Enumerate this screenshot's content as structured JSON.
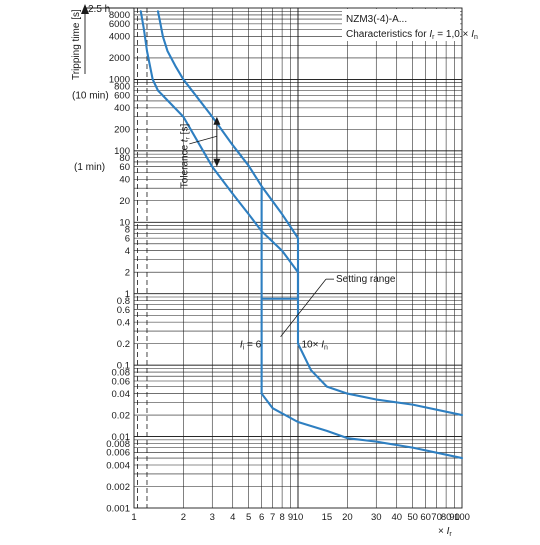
{
  "chart_data": {
    "type": "line",
    "x_scale": "log",
    "y_scale": "log",
    "xlim": [
      1,
      100
    ],
    "ylim": [
      0.001,
      10000
    ],
    "grid": true,
    "colors": {
      "curve": "#2e7fc1",
      "grid": "#1a1a1a",
      "frame": "#1a1a1a"
    },
    "header": {
      "title": "NZM3(-4)-A...",
      "subtitle_pre": "Characteristics for ",
      "subtitle_ir_var": "I",
      "subtitle_ir_sub": "r",
      "subtitle_mid": " = 1,0 × ",
      "subtitle_in_var": "I",
      "subtitle_in_sub": "n"
    },
    "y_axis": {
      "label": "Tripping time [s]",
      "top_marker": "2.5 h",
      "side_labels": [
        {
          "text": "(10 min)",
          "value": 600
        },
        {
          "text": "(1 min)",
          "value": 60
        }
      ],
      "ticks": [
        {
          "value": 8000,
          "label": "8000"
        },
        {
          "value": 6000,
          "label": "6000"
        },
        {
          "value": 4000,
          "label": "4000"
        },
        {
          "value": 2000,
          "label": "2000"
        },
        {
          "value": 1000,
          "label": "1000"
        },
        {
          "value": 800,
          "label": "800"
        },
        {
          "value": 600,
          "label": "600"
        },
        {
          "value": 400,
          "label": "400"
        },
        {
          "value": 200,
          "label": "200"
        },
        {
          "value": 100,
          "label": "100"
        },
        {
          "value": 80,
          "label": "80"
        },
        {
          "value": 60,
          "label": "60"
        },
        {
          "value": 40,
          "label": "40"
        },
        {
          "value": 20,
          "label": "20"
        },
        {
          "value": 10,
          "label": "10"
        },
        {
          "value": 8,
          "label": "8"
        },
        {
          "value": 6,
          "label": "6"
        },
        {
          "value": 4,
          "label": "4"
        },
        {
          "value": 2,
          "label": "2"
        },
        {
          "value": 1,
          "label": "1"
        },
        {
          "value": 0.8,
          "label": "0.8"
        },
        {
          "value": 0.6,
          "label": "0.6"
        },
        {
          "value": 0.4,
          "label": "0.4"
        },
        {
          "value": 0.2,
          "label": "0.2"
        },
        {
          "value": 0.1,
          "label": "0.1"
        },
        {
          "value": 0.08,
          "label": "0.08"
        },
        {
          "value": 0.06,
          "label": "0.06"
        },
        {
          "value": 0.04,
          "label": "0.04"
        },
        {
          "value": 0.02,
          "label": "0.02"
        },
        {
          "value": 0.01,
          "label": "0.01"
        },
        {
          "value": 0.008,
          "label": "0.008"
        },
        {
          "value": 0.006,
          "label": "0.006"
        },
        {
          "value": 0.004,
          "label": "0.004"
        },
        {
          "value": 0.002,
          "label": "0.002"
        },
        {
          "value": 0.001,
          "label": "0.001"
        }
      ]
    },
    "x_axis": {
      "unit_prefix": "× ",
      "unit_var": "I",
      "unit_sub": "r",
      "ticks": [
        {
          "value": 1,
          "label": "1"
        },
        {
          "value": 2,
          "label": "2"
        },
        {
          "value": 3,
          "label": "3"
        },
        {
          "value": 4,
          "label": "4"
        },
        {
          "value": 5,
          "label": "5"
        },
        {
          "value": 6,
          "label": "6"
        },
        {
          "value": 7,
          "label": "7"
        },
        {
          "value": 8,
          "label": "8"
        },
        {
          "value": 9,
          "label": "9"
        },
        {
          "value": 10,
          "label": "10"
        },
        {
          "value": 15,
          "label": "15"
        },
        {
          "value": 20,
          "label": "20"
        },
        {
          "value": 30,
          "label": "30"
        },
        {
          "value": 40,
          "label": "40"
        },
        {
          "value": 50,
          "label": "50"
        },
        {
          "value": 60,
          "label": "60"
        },
        {
          "value": 70,
          "label": "70"
        },
        {
          "value": 80,
          "label": "80"
        },
        {
          "value": 90,
          "label": "90"
        },
        {
          "value": 100,
          "label": "100"
        }
      ]
    },
    "reference_lines": [
      {
        "x": 1.05,
        "y_from": 0.001,
        "y_to": 10000,
        "style": "dashed"
      },
      {
        "x": 1.2,
        "y_from": 0.001,
        "y_to": 10000,
        "style": "dashed"
      }
    ],
    "series": [
      {
        "band": "upper",
        "points": [
          [
            1.4,
            9000
          ],
          [
            1.45,
            6000
          ],
          [
            1.5,
            4000
          ],
          [
            1.6,
            2500
          ],
          [
            1.8,
            1500
          ],
          [
            2,
            1000
          ],
          [
            3,
            300
          ],
          [
            4,
            120
          ],
          [
            5,
            62
          ],
          [
            6,
            32
          ],
          [
            8,
            13
          ],
          [
            10,
            6
          ],
          [
            10,
            0.2
          ],
          [
            12,
            0.085
          ],
          [
            15,
            0.05
          ],
          [
            20,
            0.04
          ],
          [
            30,
            0.033
          ],
          [
            50,
            0.028
          ],
          [
            100,
            0.02
          ]
        ]
      },
      {
        "band": "lower",
        "points": [
          [
            1.1,
            9000
          ],
          [
            1.15,
            5000
          ],
          [
            1.2,
            2500
          ],
          [
            1.3,
            1000
          ],
          [
            1.4,
            700
          ],
          [
            2,
            300
          ],
          [
            3,
            60
          ],
          [
            4,
            25
          ],
          [
            5,
            13
          ],
          [
            6,
            7.5
          ],
          [
            8,
            4
          ],
          [
            10,
            2
          ],
          [
            10,
            0.85
          ],
          [
            6,
            0.85
          ],
          [
            6,
            0.04
          ],
          [
            7,
            0.025
          ],
          [
            10,
            0.016
          ],
          [
            15,
            0.012
          ],
          [
            20,
            0.0095
          ],
          [
            30,
            0.0085
          ],
          [
            50,
            0.007
          ],
          [
            100,
            0.005
          ]
        ]
      },
      {
        "band": "vertical",
        "points": [
          [
            6,
            30
          ],
          [
            6,
            0.85
          ]
        ]
      }
    ],
    "annotations": {
      "tolerance": {
        "label_pre": "Tolerance ",
        "label_var": "t",
        "label_sub": "r",
        "label_post": " [s]",
        "arrow_x": 3.2,
        "arrow_top": 300,
        "arrow_bottom": 60
      },
      "setting_range": {
        "label": "Setting range",
        "pointer_from": [
          10,
          1.6
        ],
        "pointer_to": [
          7,
          0.25
        ]
      },
      "ii_label": {
        "var": "I",
        "sub": "i",
        "text": " = 6",
        "at": [
          4.3,
          0.2
        ]
      },
      "in_label": {
        "text": "10× ",
        "var": "I",
        "sub": "n",
        "at": [
          10.5,
          0.2
        ]
      }
    }
  }
}
